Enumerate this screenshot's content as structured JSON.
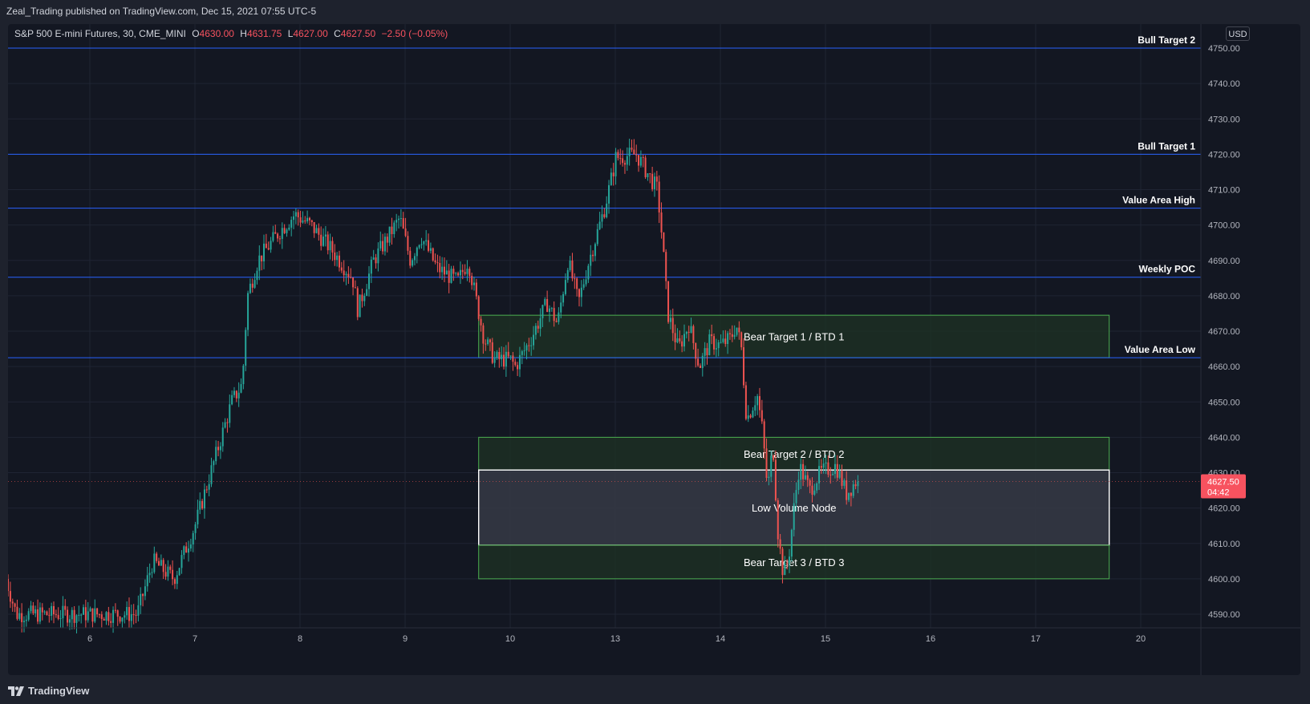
{
  "header": {
    "published_line": "Zeal_Trading published on TradingView.com, Dec 15, 2021 07:55 UTC-5"
  },
  "legend": {
    "symbol": "S&P 500 E-mini Futures, 30, CME_MINI",
    "open_label": "O",
    "open": "4630.00",
    "high_label": "H",
    "high": "4631.75",
    "low_label": "L",
    "low": "4627.00",
    "close_label": "C",
    "close": "4627.50",
    "change": "−2.50 (−0.05%)"
  },
  "price_axis": {
    "currency": "USD",
    "last_price": "4627.50",
    "countdown": "04:42"
  },
  "footer": {
    "brand": "TradingView",
    "logo_icon": "tradingview-logo-icon"
  },
  "colors": {
    "background": "#131722",
    "up": "#26a69a",
    "down": "#ef5350",
    "level_line": "#2962ff",
    "zone_fill": "#1f3324",
    "zone_border": "#4caf50",
    "lvn_fill": "#363a45"
  },
  "chart_data": {
    "type": "candlestick",
    "title": "S&P 500 E-mini Futures, 30, CME_MINI",
    "ylim": [
      4586,
      4752
    ],
    "y_ticks": [
      "4750.00",
      "4740.00",
      "4730.00",
      "4720.00",
      "4710.00",
      "4700.00",
      "4690.00",
      "4680.00",
      "4670.00",
      "4660.00",
      "4650.00",
      "4640.00",
      "4630.00",
      "4620.00",
      "4610.00",
      "4600.00",
      "4590.00"
    ],
    "x_ticks": [
      "6",
      "7",
      "8",
      "9",
      "10",
      "13",
      "14",
      "15",
      "16",
      "17",
      "20"
    ],
    "grid": true,
    "horizontal_levels": [
      {
        "label": "Bull Target 2",
        "price": 4750
      },
      {
        "label": "Bull Target 1",
        "price": 4720
      },
      {
        "label": "Value Area High",
        "price": 4704.75
      },
      {
        "label": "Weekly POC",
        "price": 4685.25
      },
      {
        "label": "Value Area Low",
        "price": 4662.5
      }
    ],
    "zones": [
      {
        "label": "Bear Target 1 / BTD 1",
        "start": "9.7",
        "end": "17.7",
        "top": 4674.5,
        "bottom": 4662.5,
        "kind": "green"
      },
      {
        "label": "Bear Target 2 / BTD 2",
        "start": "9.7",
        "end": "17.7",
        "top": 4640,
        "bottom": 4630.75,
        "kind": "green"
      },
      {
        "label": "Low Volume Node",
        "start": "9.7",
        "end": "17.7",
        "top": 4630.75,
        "bottom": 4609.5,
        "kind": "grey"
      },
      {
        "label": "Bear Target 3 / BTD 3",
        "start": "9.7",
        "end": "17.7",
        "top": 4609.5,
        "bottom": 4600,
        "kind": "green"
      }
    ],
    "price_path": [
      {
        "x": "5.2",
        "close": 4600
      },
      {
        "x": "5.3",
        "close": 4590
      },
      {
        "x": "6.45",
        "close": 4590
      },
      {
        "x": "6.6",
        "close": 4605
      },
      {
        "x": "6.8",
        "close": 4600
      },
      {
        "x": "7.0",
        "close": 4615
      },
      {
        "x": "7.2",
        "close": 4635
      },
      {
        "x": "7.35",
        "close": 4650
      },
      {
        "x": "7.45",
        "close": 4655
      },
      {
        "x": "7.5",
        "close": 4680
      },
      {
        "x": "7.6",
        "close": 4690
      },
      {
        "x": "7.8",
        "close": 4698
      },
      {
        "x": "7.95",
        "close": 4703
      },
      {
        "x": "8.1",
        "close": 4700
      },
      {
        "x": "8.3",
        "close": 4693
      },
      {
        "x": "8.5",
        "close": 4685
      },
      {
        "x": "8.55",
        "close": 4676
      },
      {
        "x": "8.7",
        "close": 4690
      },
      {
        "x": "8.95",
        "close": 4702
      },
      {
        "x": "9.05",
        "close": 4690
      },
      {
        "x": "9.15",
        "close": 4697
      },
      {
        "x": "9.3",
        "close": 4688
      },
      {
        "x": "9.5",
        "close": 4684
      },
      {
        "x": "9.6",
        "close": 4690
      },
      {
        "x": "9.75",
        "close": 4668
      },
      {
        "x": "9.85",
        "close": 4662
      },
      {
        "x": "10.0",
        "close": 4662
      },
      {
        "x": "10.05",
        "close": 4660
      },
      {
        "x": "10.2",
        "close": 4668
      },
      {
        "x": "10.35",
        "close": 4678
      },
      {
        "x": "10.45",
        "close": 4672
      },
      {
        "x": "10.55",
        "close": 4690
      },
      {
        "x": "10.65",
        "close": 4678
      },
      {
        "x": "10.75",
        "close": 4690
      },
      {
        "x": "10.9",
        "close": 4705
      },
      {
        "x": "11.0",
        "close": 4718
      },
      {
        "x": "12.9",
        "close": 4722
      },
      {
        "x": "13.0",
        "close": 4719
      },
      {
        "x": "13.2",
        "close": 4720
      },
      {
        "x": "13.4",
        "close": 4710
      },
      {
        "x": "13.45",
        "close": 4695
      },
      {
        "x": "13.5",
        "close": 4675
      },
      {
        "x": "13.6",
        "close": 4665
      },
      {
        "x": "13.7",
        "close": 4672
      },
      {
        "x": "13.8",
        "close": 4660
      },
      {
        "x": "13.9",
        "close": 4667
      },
      {
        "x": "14.0",
        "close": 4666
      },
      {
        "x": "14.1",
        "close": 4668
      },
      {
        "x": "14.15",
        "close": 4672
      },
      {
        "x": "14.2",
        "close": 4665
      },
      {
        "x": "14.25",
        "close": 4645
      },
      {
        "x": "14.35",
        "close": 4652
      },
      {
        "x": "14.4",
        "close": 4642
      },
      {
        "x": "14.45",
        "close": 4625
      },
      {
        "x": "14.5",
        "close": 4638
      },
      {
        "x": "14.55",
        "close": 4612
      },
      {
        "x": "14.6",
        "close": 4601
      },
      {
        "x": "14.65",
        "close": 4606
      },
      {
        "x": "14.7",
        "close": 4620
      },
      {
        "x": "14.75",
        "close": 4632
      },
      {
        "x": "14.85",
        "close": 4625
      },
      {
        "x": "14.95",
        "close": 4630
      },
      {
        "x": "15.1",
        "close": 4632
      },
      {
        "x": "15.2",
        "close": 4624
      },
      {
        "x": "15.3",
        "close": 4628
      },
      {
        "x": "15.33",
        "close": 4627.5
      }
    ]
  }
}
